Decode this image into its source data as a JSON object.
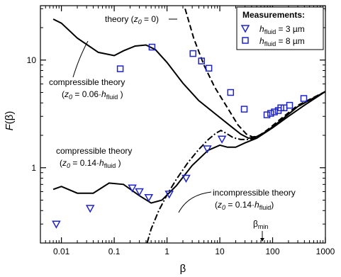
{
  "chart_data": {
    "type": "scatter",
    "xlabel": "β",
    "ylabel": "F(β)",
    "x_scale": "log",
    "y_scale": "log",
    "xlim": [
      0.004,
      1000
    ],
    "ylim": [
      0.2,
      32
    ],
    "x_ticks": [
      {
        "v": 0.01,
        "label": "0.01"
      },
      {
        "v": 0.1,
        "label": "0.1"
      },
      {
        "v": 1,
        "label": "1"
      },
      {
        "v": 10,
        "label": "10"
      },
      {
        "v": 100,
        "label": "100"
      },
      {
        "v": 1000,
        "label": "1000"
      }
    ],
    "y_ticks": [
      {
        "v": 1,
        "label": "1"
      },
      {
        "v": 10,
        "label": "10"
      }
    ],
    "legend": {
      "title": "Measurements:",
      "placement": "top-right",
      "entries": [
        {
          "marker": "triangle-down",
          "label_base": "h",
          "label_sub": "fluid",
          "label_rest": " = 3 µm"
        },
        {
          "marker": "square",
          "label_base": "h",
          "label_sub": "fluid",
          "label_rest": " = 8 µm"
        }
      ]
    },
    "marker_color": "#1f24c9",
    "series": [
      {
        "marker": "triangle-down",
        "points": [
          [
            0.008,
            0.3
          ],
          [
            0.035,
            0.42
          ],
          [
            0.22,
            0.65
          ],
          [
            0.3,
            0.6
          ],
          [
            0.45,
            0.53
          ],
          [
            1.1,
            0.57
          ],
          [
            2.3,
            0.8
          ],
          [
            5.8,
            1.5
          ],
          [
            11,
            1.85
          ]
        ]
      },
      {
        "marker": "square",
        "points": [
          [
            0.13,
            8.3
          ],
          [
            0.52,
            13.2
          ],
          [
            3.1,
            11.5
          ],
          [
            4.5,
            9.8
          ],
          [
            6.2,
            8.4
          ],
          [
            16,
            5
          ],
          [
            29,
            3.5
          ],
          [
            78,
            3.1
          ],
          [
            92,
            3.2
          ],
          [
            108,
            3.3
          ],
          [
            128,
            3.4
          ],
          [
            143,
            3.6
          ],
          [
            165,
            3.6
          ],
          [
            210,
            3.8
          ],
          [
            390,
            4.4
          ]
        ]
      }
    ],
    "curves": [
      {
        "style": "dashed",
        "points": [
          [
            2.2,
            30
          ],
          [
            3.2,
            16
          ],
          [
            5,
            9
          ],
          [
            8,
            5.6
          ],
          [
            14,
            3.6
          ],
          [
            22,
            2.5
          ],
          [
            32,
            2.05
          ],
          [
            42,
            1.93
          ],
          [
            55,
            1.98
          ],
          [
            80,
            2.25
          ],
          [
            150,
            2.9
          ],
          [
            300,
            3.8
          ],
          [
            1000,
            5.1
          ]
        ]
      },
      {
        "style": "solid",
        "points": [
          [
            0.007,
            24
          ],
          [
            0.01,
            22
          ],
          [
            0.02,
            16
          ],
          [
            0.05,
            11.8
          ],
          [
            0.1,
            11
          ],
          [
            0.15,
            12.2
          ],
          [
            0.25,
            13.5
          ],
          [
            0.4,
            13.8
          ],
          [
            0.6,
            12.5
          ],
          [
            1,
            9.5
          ],
          [
            2,
            6.1
          ],
          [
            4,
            4.2
          ],
          [
            8,
            3.2
          ],
          [
            15,
            2.5
          ],
          [
            25,
            2.05
          ],
          [
            35,
            1.88
          ],
          [
            50,
            1.95
          ],
          [
            80,
            2.2
          ],
          [
            150,
            2.8
          ],
          [
            300,
            3.7
          ],
          [
            1000,
            5.1
          ]
        ]
      },
      {
        "style": "solid",
        "points": [
          [
            0.007,
            0.63
          ],
          [
            0.01,
            0.67
          ],
          [
            0.02,
            0.58
          ],
          [
            0.04,
            0.58
          ],
          [
            0.08,
            0.72
          ],
          [
            0.15,
            0.7
          ],
          [
            0.3,
            0.55
          ],
          [
            0.5,
            0.47
          ],
          [
            0.8,
            0.5
          ],
          [
            1.5,
            0.68
          ],
          [
            3,
            1.05
          ],
          [
            6,
            1.45
          ],
          [
            10,
            1.62
          ],
          [
            14,
            1.55
          ],
          [
            20,
            1.55
          ],
          [
            30,
            1.7
          ],
          [
            50,
            1.88
          ],
          [
            100,
            2.35
          ],
          [
            200,
            3
          ],
          [
            400,
            3.8
          ],
          [
            1000,
            5.1
          ]
        ]
      },
      {
        "style": "dashdot",
        "points": [
          [
            0.42,
            0.2
          ],
          [
            0.5,
            0.27
          ],
          [
            0.7,
            0.4
          ],
          [
            1,
            0.56
          ],
          [
            1.5,
            0.78
          ],
          [
            2.5,
            1.12
          ],
          [
            4,
            1.48
          ],
          [
            6,
            1.82
          ],
          [
            8.5,
            2.1
          ],
          [
            10.5,
            2.22
          ],
          [
            13,
            2.1
          ],
          [
            18,
            1.9
          ],
          [
            25,
            1.83
          ],
          [
            35,
            1.83
          ],
          [
            50,
            1.9
          ],
          [
            80,
            2.2
          ],
          [
            150,
            2.8
          ],
          [
            300,
            3.7
          ],
          [
            1000,
            5.1
          ]
        ]
      }
    ],
    "annotations": [
      {
        "id": "ann-theory-z0",
        "line1": "theory (",
        "z": "z",
        "zsub": "0",
        "rest": " = 0)"
      },
      {
        "id": "ann-compressible-006",
        "line1": "compressible theory",
        "line2_pre": "(",
        "z": "z",
        "zsub": "0",
        "line2_mid": " = 0.06·",
        "h": "h",
        "hsub": "fluid",
        "line2_post": " )"
      },
      {
        "id": "ann-compressible-014",
        "line1": "compressible theory",
        "line2_pre": "(",
        "z": "z",
        "zsub": "0",
        "line2_mid": " = 0.14·",
        "h": "h",
        "hsub": "fluid",
        "line2_post": " )"
      },
      {
        "id": "ann-incompressible",
        "line1": "incompressible theory",
        "line2_pre": "(",
        "z": "z",
        "zsub": "0",
        "line2_mid": " = 0.14·",
        "h": "h",
        "hsub": "fluid",
        "line2_post": ")"
      },
      {
        "id": "ann-beta-min",
        "base": "β",
        "sub": "min"
      }
    ]
  }
}
